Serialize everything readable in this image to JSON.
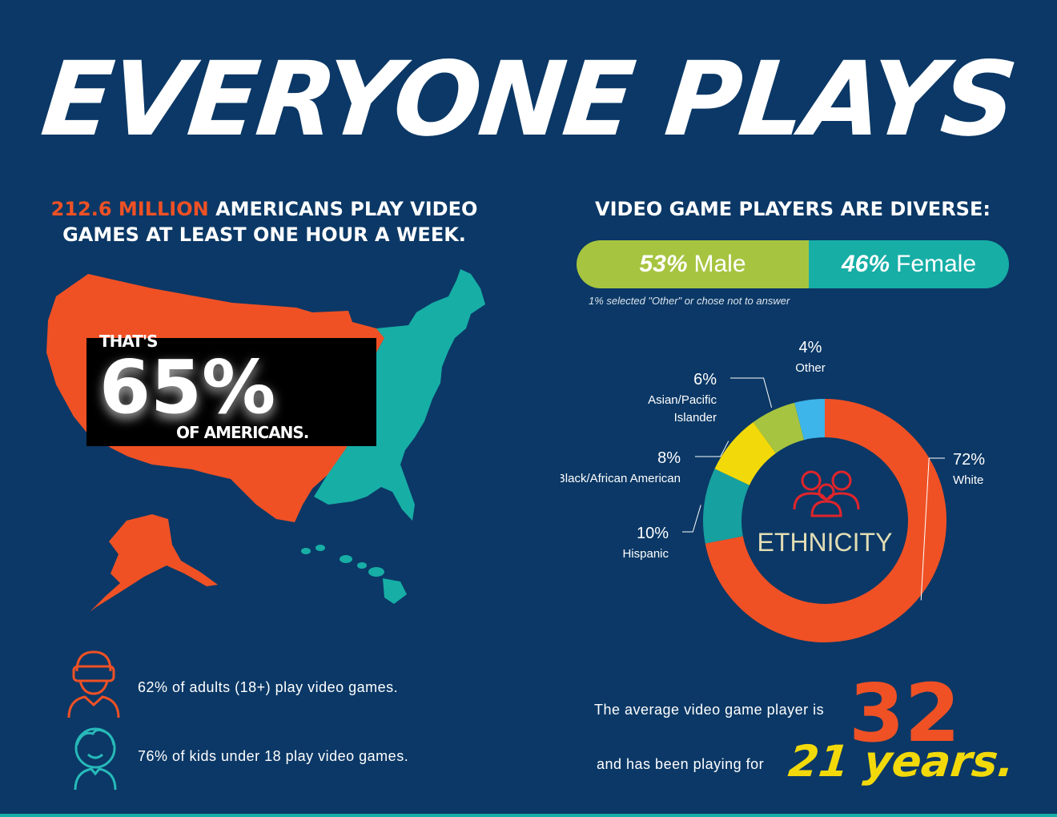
{
  "title": "EVERYONE PLAYS",
  "left": {
    "headline_highlight": "212.6 MILLION",
    "headline_line1_rest": " AMERICANS PLAY VIDEO",
    "headline_line2": "GAMES AT LEAST ONE HOUR A WEEK.",
    "stat": {
      "prefix": "THAT'S",
      "value": "65%",
      "suffix": "OF AMERICANS."
    },
    "facts": [
      {
        "icon": "vr-headset-adult-icon",
        "text": "62% of adults (18+) play video games."
      },
      {
        "icon": "child-face-icon",
        "text": "76% of kids under 18 play video games."
      }
    ]
  },
  "right": {
    "headline": "VIDEO GAME PLAYERS ARE DIVERSE:",
    "gender": {
      "male_pct": "53%",
      "male_label": "Male",
      "female_pct": "46%",
      "female_label": "Female",
      "male_value": 53,
      "female_value": 46,
      "note": "1% selected \"Other\" or chose not to answer"
    },
    "ethnicity": {
      "center_label": "ETHNICITY",
      "center_icon": "group-of-people-icon"
    },
    "age": {
      "line1": "The average video game player is",
      "age_value": "32",
      "line2": "and has been playing for",
      "years_value": "21 years."
    }
  },
  "colors": {
    "background": "#0b3866",
    "orange": "#ef5125",
    "teal": "#17aea6",
    "green": "#a7c440",
    "yellow": "#f2d90a",
    "sky": "#3db4ea"
  },
  "chart_data": {
    "type": "pie",
    "variant": "donut",
    "categories": [
      "White",
      "Hispanic",
      "Black/African American",
      "Asian/Pacific Islander",
      "Other"
    ],
    "values": [
      72,
      10,
      8,
      6,
      4
    ],
    "labels": [
      "72%",
      "10%",
      "8%",
      "6%",
      "4%"
    ],
    "label_lines": [
      [
        "White"
      ],
      [
        "Hispanic"
      ],
      [
        "Black/African American"
      ],
      [
        "Asian/Pacific",
        "Islander"
      ],
      [
        "Other"
      ]
    ],
    "colors": [
      "#ef5125",
      "#17a0a0",
      "#f2d90a",
      "#a7c440",
      "#3db4ea"
    ]
  }
}
